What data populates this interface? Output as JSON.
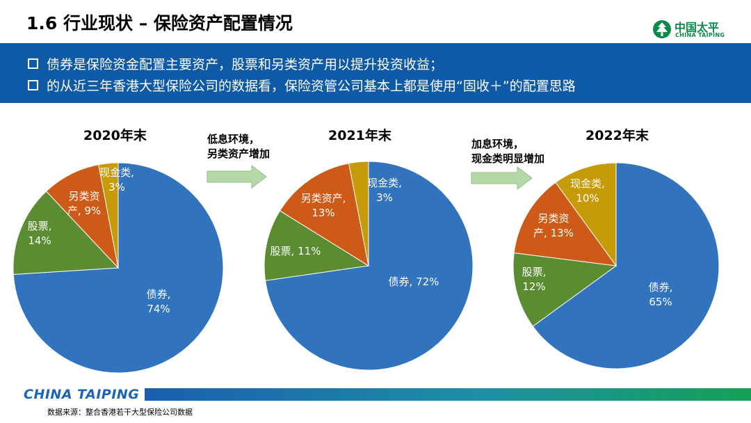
{
  "header": {
    "title": "1.6 行业现状 – 保险资产配置情况"
  },
  "logo": {
    "cn": "中国太平",
    "en": "CHINA TAIPING"
  },
  "banner": {
    "bullets": [
      "债券是保险资金配置主要资产，股票和另类资产用以提升投资收益；",
      "的从近三年香港大型保险公司的数据看，保险资管公司基本上都是使用“固收＋”的配置思路"
    ]
  },
  "arrows": [
    {
      "line1": "低息环境，",
      "line2": "另类资产增加"
    },
    {
      "line1": "加息环境，",
      "line2": "现金类明显增加"
    }
  ],
  "footer": {
    "brand": "CHINA TAIPING",
    "source": "数据来源：整合香港若干大型保险公司数据"
  },
  "colors": {
    "债券": "#3173bd",
    "股票": "#5b8c32",
    "另类资产": "#cd5b17",
    "现金类": "#c79a09",
    "banner": "#0f5aa7"
  },
  "chart_data": [
    {
      "type": "pie",
      "title": "2020年末",
      "categories": [
        "债券",
        "股票",
        "另类资产",
        "现金类"
      ],
      "values": [
        74,
        14,
        9,
        3
      ],
      "labels": [
        [
          "债券,",
          "74%"
        ],
        [
          "股票,",
          "14%"
        ],
        [
          "另类资",
          "产, 9%"
        ],
        [
          "现金类,",
          "3%"
        ]
      ]
    },
    {
      "type": "pie",
      "title": "2021年末",
      "categories": [
        "债券",
        "股票",
        "另类资产",
        "现金类"
      ],
      "values": [
        72,
        11,
        13,
        3
      ],
      "labels": [
        [
          "债券, 72%"
        ],
        [
          "股票, 11%"
        ],
        [
          "另类资产,",
          "13%"
        ],
        [
          "现金类,",
          "3%"
        ]
      ]
    },
    {
      "type": "pie",
      "title": "2022年末",
      "categories": [
        "债券",
        "股票",
        "另类资产",
        "现金类"
      ],
      "values": [
        65,
        12,
        13,
        10
      ],
      "labels": [
        [
          "债券,",
          "65%"
        ],
        [
          "股票,",
          "12%"
        ],
        [
          "另类资",
          "产, 13%"
        ],
        [
          "现金类,",
          "10%"
        ]
      ]
    }
  ]
}
